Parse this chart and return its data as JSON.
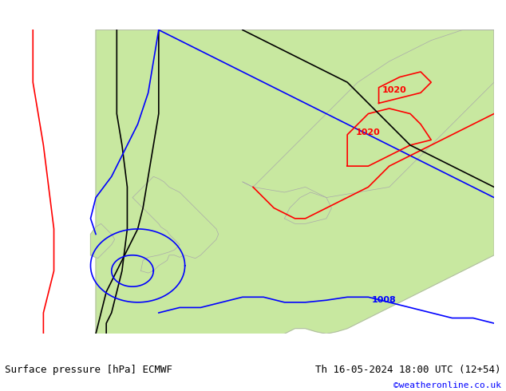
{
  "title_left": "Surface pressure [hPa] ECMWF",
  "title_right": "Th 16-05-2024 18:00 UTC (12+54)",
  "watermark": "©weatheronline.co.uk",
  "background_color": "#e8e8e8",
  "land_color": "#c8e8a0",
  "sea_color": "#d8d8d8",
  "font_family": "monospace",
  "label_1008": "1008",
  "label_1020_1": "1020",
  "label_1020_2": "1020",
  "contour_colors": {
    "black": "#000000",
    "blue": "#0000ff",
    "red": "#ff0000"
  }
}
